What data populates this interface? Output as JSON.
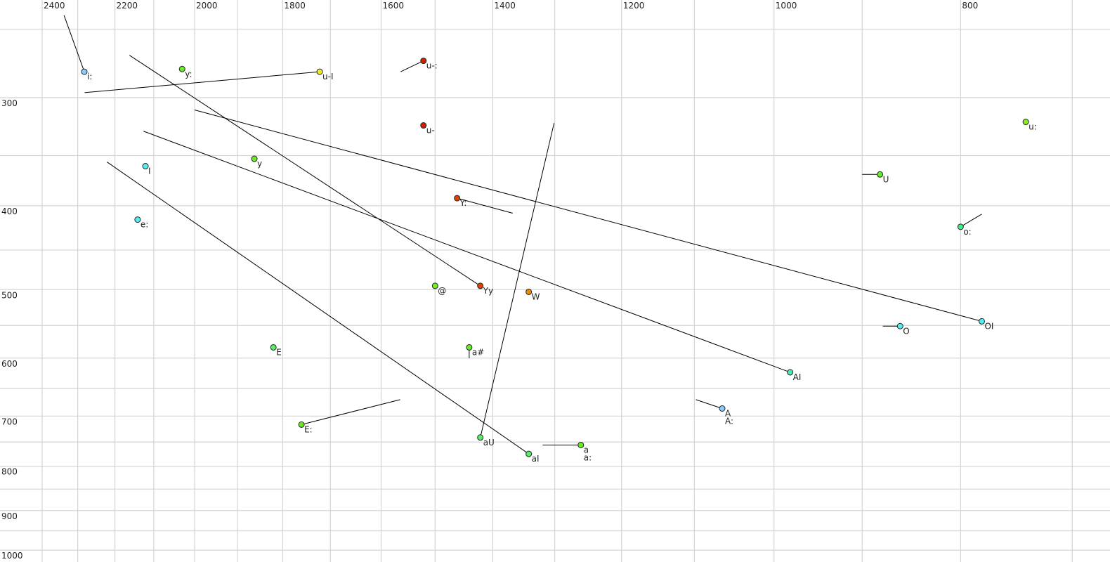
{
  "chart_data": {
    "type": "scatter",
    "title": "",
    "xlabel": "",
    "ylabel": "",
    "x_scale": "log",
    "y_scale": "log",
    "x_reversed": true,
    "xlim": [
      2400,
      700
    ],
    "ylim": [
      250,
      1000
    ],
    "grid": true,
    "x_ticks": [
      2400,
      2200,
      2000,
      1800,
      1600,
      1400,
      1200,
      1000,
      800
    ],
    "x_tick_labels": [
      "2400",
      "2200",
      "2000",
      "1800",
      "1600",
      "1400",
      "1200",
      "1000",
      "800"
    ],
    "x_gridlines": [
      2400,
      2300,
      2200,
      2100,
      2000,
      1900,
      1800,
      1700,
      1600,
      1500,
      1400,
      1300,
      1200,
      1100,
      1000,
      900,
      800,
      700
    ],
    "y_ticks": [
      300,
      400,
      500,
      600,
      700,
      800,
      900,
      1000
    ],
    "y_tick_labels": [
      "300",
      "400",
      "500",
      "600",
      "700",
      "800",
      "900",
      "1000"
    ],
    "y_gridlines": [
      250,
      300,
      350,
      400,
      450,
      500,
      550,
      600,
      650,
      700,
      750,
      800,
      850,
      900,
      950,
      1000
    ],
    "points": [
      {
        "label": "i:",
        "f2": 2282,
        "f1": 280,
        "color": "#88ccff"
      },
      {
        "label": "y:",
        "f2": 2030,
        "f1": 278,
        "color": "#66ee22"
      },
      {
        "label": "u-I",
        "f2": 1722,
        "f1": 280,
        "color": "#eeee22"
      },
      {
        "label": "u-:",
        "f2": 1521,
        "f1": 272,
        "color": "#cc2200"
      },
      {
        "label": "u-",
        "f2": 1521,
        "f1": 323,
        "color": "#cc2200"
      },
      {
        "label": "u:",
        "f2": 740,
        "f1": 320,
        "color": "#88ee22"
      },
      {
        "label": "I",
        "f2": 2121,
        "f1": 360,
        "color": "#55eeee"
      },
      {
        "label": "y",
        "f2": 1862,
        "f1": 353,
        "color": "#66ee22"
      },
      {
        "label": "U",
        "f2": 881,
        "f1": 368,
        "color": "#66ee22"
      },
      {
        "label": "Y:",
        "f2": 1461,
        "f1": 392,
        "color": "#dd4400"
      },
      {
        "label": "e:",
        "f2": 2141,
        "f1": 415,
        "color": "#55eeee"
      },
      {
        "label": "o:",
        "f2": 800,
        "f1": 423,
        "color": "#44ee88"
      },
      {
        "label": "@",
        "f2": 1500,
        "f1": 495,
        "color": "#77ee22"
      },
      {
        "label": "Yy",
        "f2": 1421,
        "f1": 495,
        "color": "#dd4400"
      },
      {
        "label": "W",
        "f2": 1341,
        "f1": 503,
        "color": "#ee8800"
      },
      {
        "label": "OI",
        "f2": 780,
        "f1": 544,
        "color": "#55eeee"
      },
      {
        "label": "O",
        "f2": 860,
        "f1": 551,
        "color": "#55eeee"
      },
      {
        "label": "E",
        "f2": 1820,
        "f1": 583,
        "color": "#55ee66"
      },
      {
        "label": "a#",
        "f2": 1440,
        "f1": 583,
        "color": "#66ee22"
      },
      {
        "label": "AI",
        "f2": 981,
        "f1": 623,
        "color": "#44eebb"
      },
      {
        "label": "A",
        "f2": 1064,
        "f1": 686,
        "color": "#88ccff"
      },
      {
        "label": "A:",
        "f2": 1064,
        "f1": 686,
        "color": "#88ccff"
      },
      {
        "label": "E:",
        "f2": 1760,
        "f1": 716,
        "color": "#66ee22"
      },
      {
        "label": "aU",
        "f2": 1421,
        "f1": 741,
        "color": "#55ee66"
      },
      {
        "label": "a",
        "f2": 1260,
        "f1": 756,
        "color": "#66ee22"
      },
      {
        "label": "a:",
        "f2": 1260,
        "f1": 756,
        "color": "#66ee22"
      },
      {
        "label": "aI",
        "f2": 1341,
        "f1": 774,
        "color": "#55ee66"
      }
    ],
    "trajectories": [
      {
        "vowel": "i:",
        "from": [
          2338,
          241
        ],
        "to": [
          2282,
          280
        ]
      },
      {
        "vowel": "u-I",
        "from": [
          2281,
          296
        ],
        "to": [
          1722,
          280
        ]
      },
      {
        "vowel": "Yy",
        "from": [
          2162,
          268
        ],
        "to": [
          1421,
          495
        ]
      },
      {
        "vowel": "u-:",
        "from": [
          1563,
          280
        ],
        "to": [
          1521,
          272
        ]
      },
      {
        "vowel": "OI",
        "from": [
          2000,
          310
        ],
        "to": [
          780,
          544
        ]
      },
      {
        "vowel": "AI",
        "from": [
          2126,
          328
        ],
        "to": [
          981,
          623
        ]
      },
      {
        "vowel": "aI",
        "from": [
          2221,
          356
        ],
        "to": [
          1341,
          774
        ]
      },
      {
        "vowel": "aU",
        "from": [
          1301,
          321
        ],
        "to": [
          1421,
          741
        ]
      },
      {
        "vowel": "Y:",
        "from": [
          1461,
          392
        ],
        "to": [
          1367,
          408
        ]
      },
      {
        "vowel": "U",
        "from": [
          900,
          368
        ],
        "to": [
          881,
          368
        ]
      },
      {
        "vowel": "o:",
        "from": [
          800,
          423
        ],
        "to": [
          780,
          409
        ]
      },
      {
        "vowel": "O",
        "from": [
          878,
          551
        ],
        "to": [
          860,
          551
        ]
      },
      {
        "vowel": "a#",
        "from": [
          1440,
          583
        ],
        "to": [
          1440,
          600
        ]
      },
      {
        "vowel": "E:",
        "from": [
          1760,
          716
        ],
        "to": [
          1564,
          670
        ]
      },
      {
        "vowel": "A",
        "from": [
          1098,
          670
        ],
        "to": [
          1064,
          686
        ]
      },
      {
        "vowel": "a",
        "from": [
          1319,
          756
        ],
        "to": [
          1260,
          756
        ]
      }
    ]
  }
}
